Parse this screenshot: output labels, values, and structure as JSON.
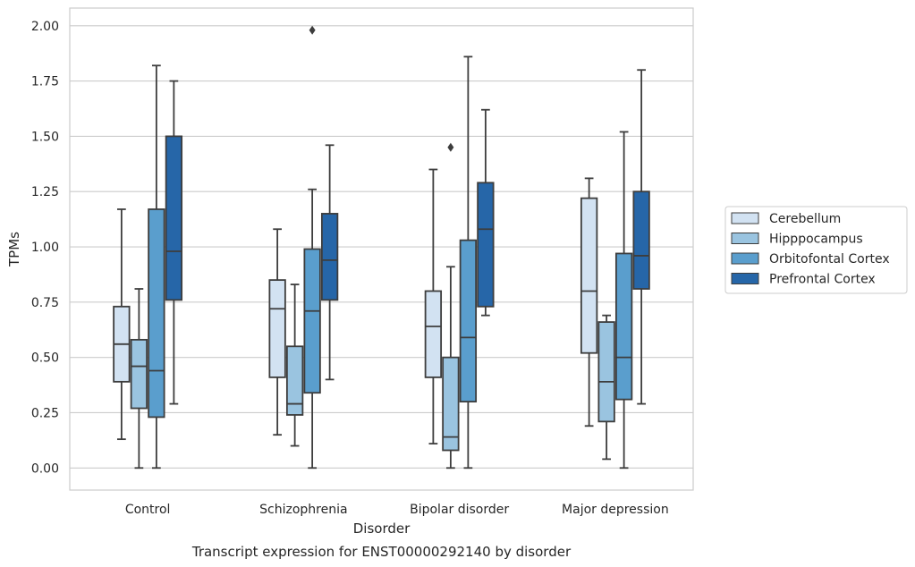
{
  "chart_data": {
    "type": "box",
    "title": "",
    "caption": "Transcript expression for ENST00000292140 by disorder",
    "xlabel": "Disorder",
    "ylabel": "TPMs",
    "ylim": [
      -0.1,
      2.08
    ],
    "yticks": [
      "0.00",
      "0.25",
      "0.50",
      "0.75",
      "1.00",
      "1.25",
      "1.50",
      "1.75",
      "2.00"
    ],
    "ytick_values": [
      0,
      0.25,
      0.5,
      0.75,
      1.0,
      1.25,
      1.5,
      1.75,
      2.0
    ],
    "grid": "horizontal",
    "legend_position": "right",
    "categories": [
      "Control",
      "Schizophrenia",
      "Bipolar disorder",
      "Major depression"
    ],
    "series": [
      {
        "name": "Cerebellum",
        "color": "#d2e2f2",
        "boxes": [
          {
            "min": 0.13,
            "q1": 0.39,
            "median": 0.56,
            "q3": 0.73,
            "max": 1.17,
            "outliers": []
          },
          {
            "min": 0.15,
            "q1": 0.41,
            "median": 0.72,
            "q3": 0.85,
            "max": 1.08,
            "outliers": []
          },
          {
            "min": 0.11,
            "q1": 0.41,
            "median": 0.64,
            "q3": 0.8,
            "max": 1.35,
            "outliers": []
          },
          {
            "min": 0.19,
            "q1": 0.52,
            "median": 0.8,
            "q3": 1.22,
            "max": 1.31,
            "outliers": []
          }
        ]
      },
      {
        "name": "Hipppocampus",
        "color": "#9ac4e0",
        "boxes": [
          {
            "min": 0.0,
            "q1": 0.27,
            "median": 0.46,
            "q3": 0.58,
            "max": 0.81,
            "outliers": []
          },
          {
            "min": 0.1,
            "q1": 0.24,
            "median": 0.29,
            "q3": 0.55,
            "max": 0.83,
            "outliers": []
          },
          {
            "min": 0.0,
            "q1": 0.08,
            "median": 0.14,
            "q3": 0.5,
            "max": 0.91,
            "outliers": [
              1.45
            ]
          },
          {
            "min": 0.04,
            "q1": 0.21,
            "median": 0.39,
            "q3": 0.66,
            "max": 0.69,
            "outliers": []
          }
        ]
      },
      {
        "name": "Orbitofontal Cortex",
        "color": "#5a9ecd",
        "boxes": [
          {
            "min": 0.0,
            "q1": 0.23,
            "median": 0.44,
            "q3": 1.17,
            "max": 1.82,
            "outliers": []
          },
          {
            "min": 0.0,
            "q1": 0.34,
            "median": 0.71,
            "q3": 0.99,
            "max": 1.26,
            "outliers": [
              1.98
            ]
          },
          {
            "min": 0.0,
            "q1": 0.3,
            "median": 0.59,
            "q3": 1.03,
            "max": 1.86,
            "outliers": []
          },
          {
            "min": 0.0,
            "q1": 0.31,
            "median": 0.5,
            "q3": 0.97,
            "max": 1.52,
            "outliers": []
          }
        ]
      },
      {
        "name": "Prefrontal Cortex",
        "color": "#2666a8",
        "boxes": [
          {
            "min": 0.29,
            "q1": 0.76,
            "median": 0.98,
            "q3": 1.5,
            "max": 1.75,
            "outliers": []
          },
          {
            "min": 0.4,
            "q1": 0.76,
            "median": 0.94,
            "q3": 1.15,
            "max": 1.46,
            "outliers": []
          },
          {
            "min": 0.69,
            "q1": 0.73,
            "median": 1.08,
            "q3": 1.29,
            "max": 1.62,
            "outliers": []
          },
          {
            "min": 0.29,
            "q1": 0.81,
            "median": 0.96,
            "q3": 1.25,
            "max": 1.8,
            "outliers": []
          }
        ]
      }
    ]
  }
}
